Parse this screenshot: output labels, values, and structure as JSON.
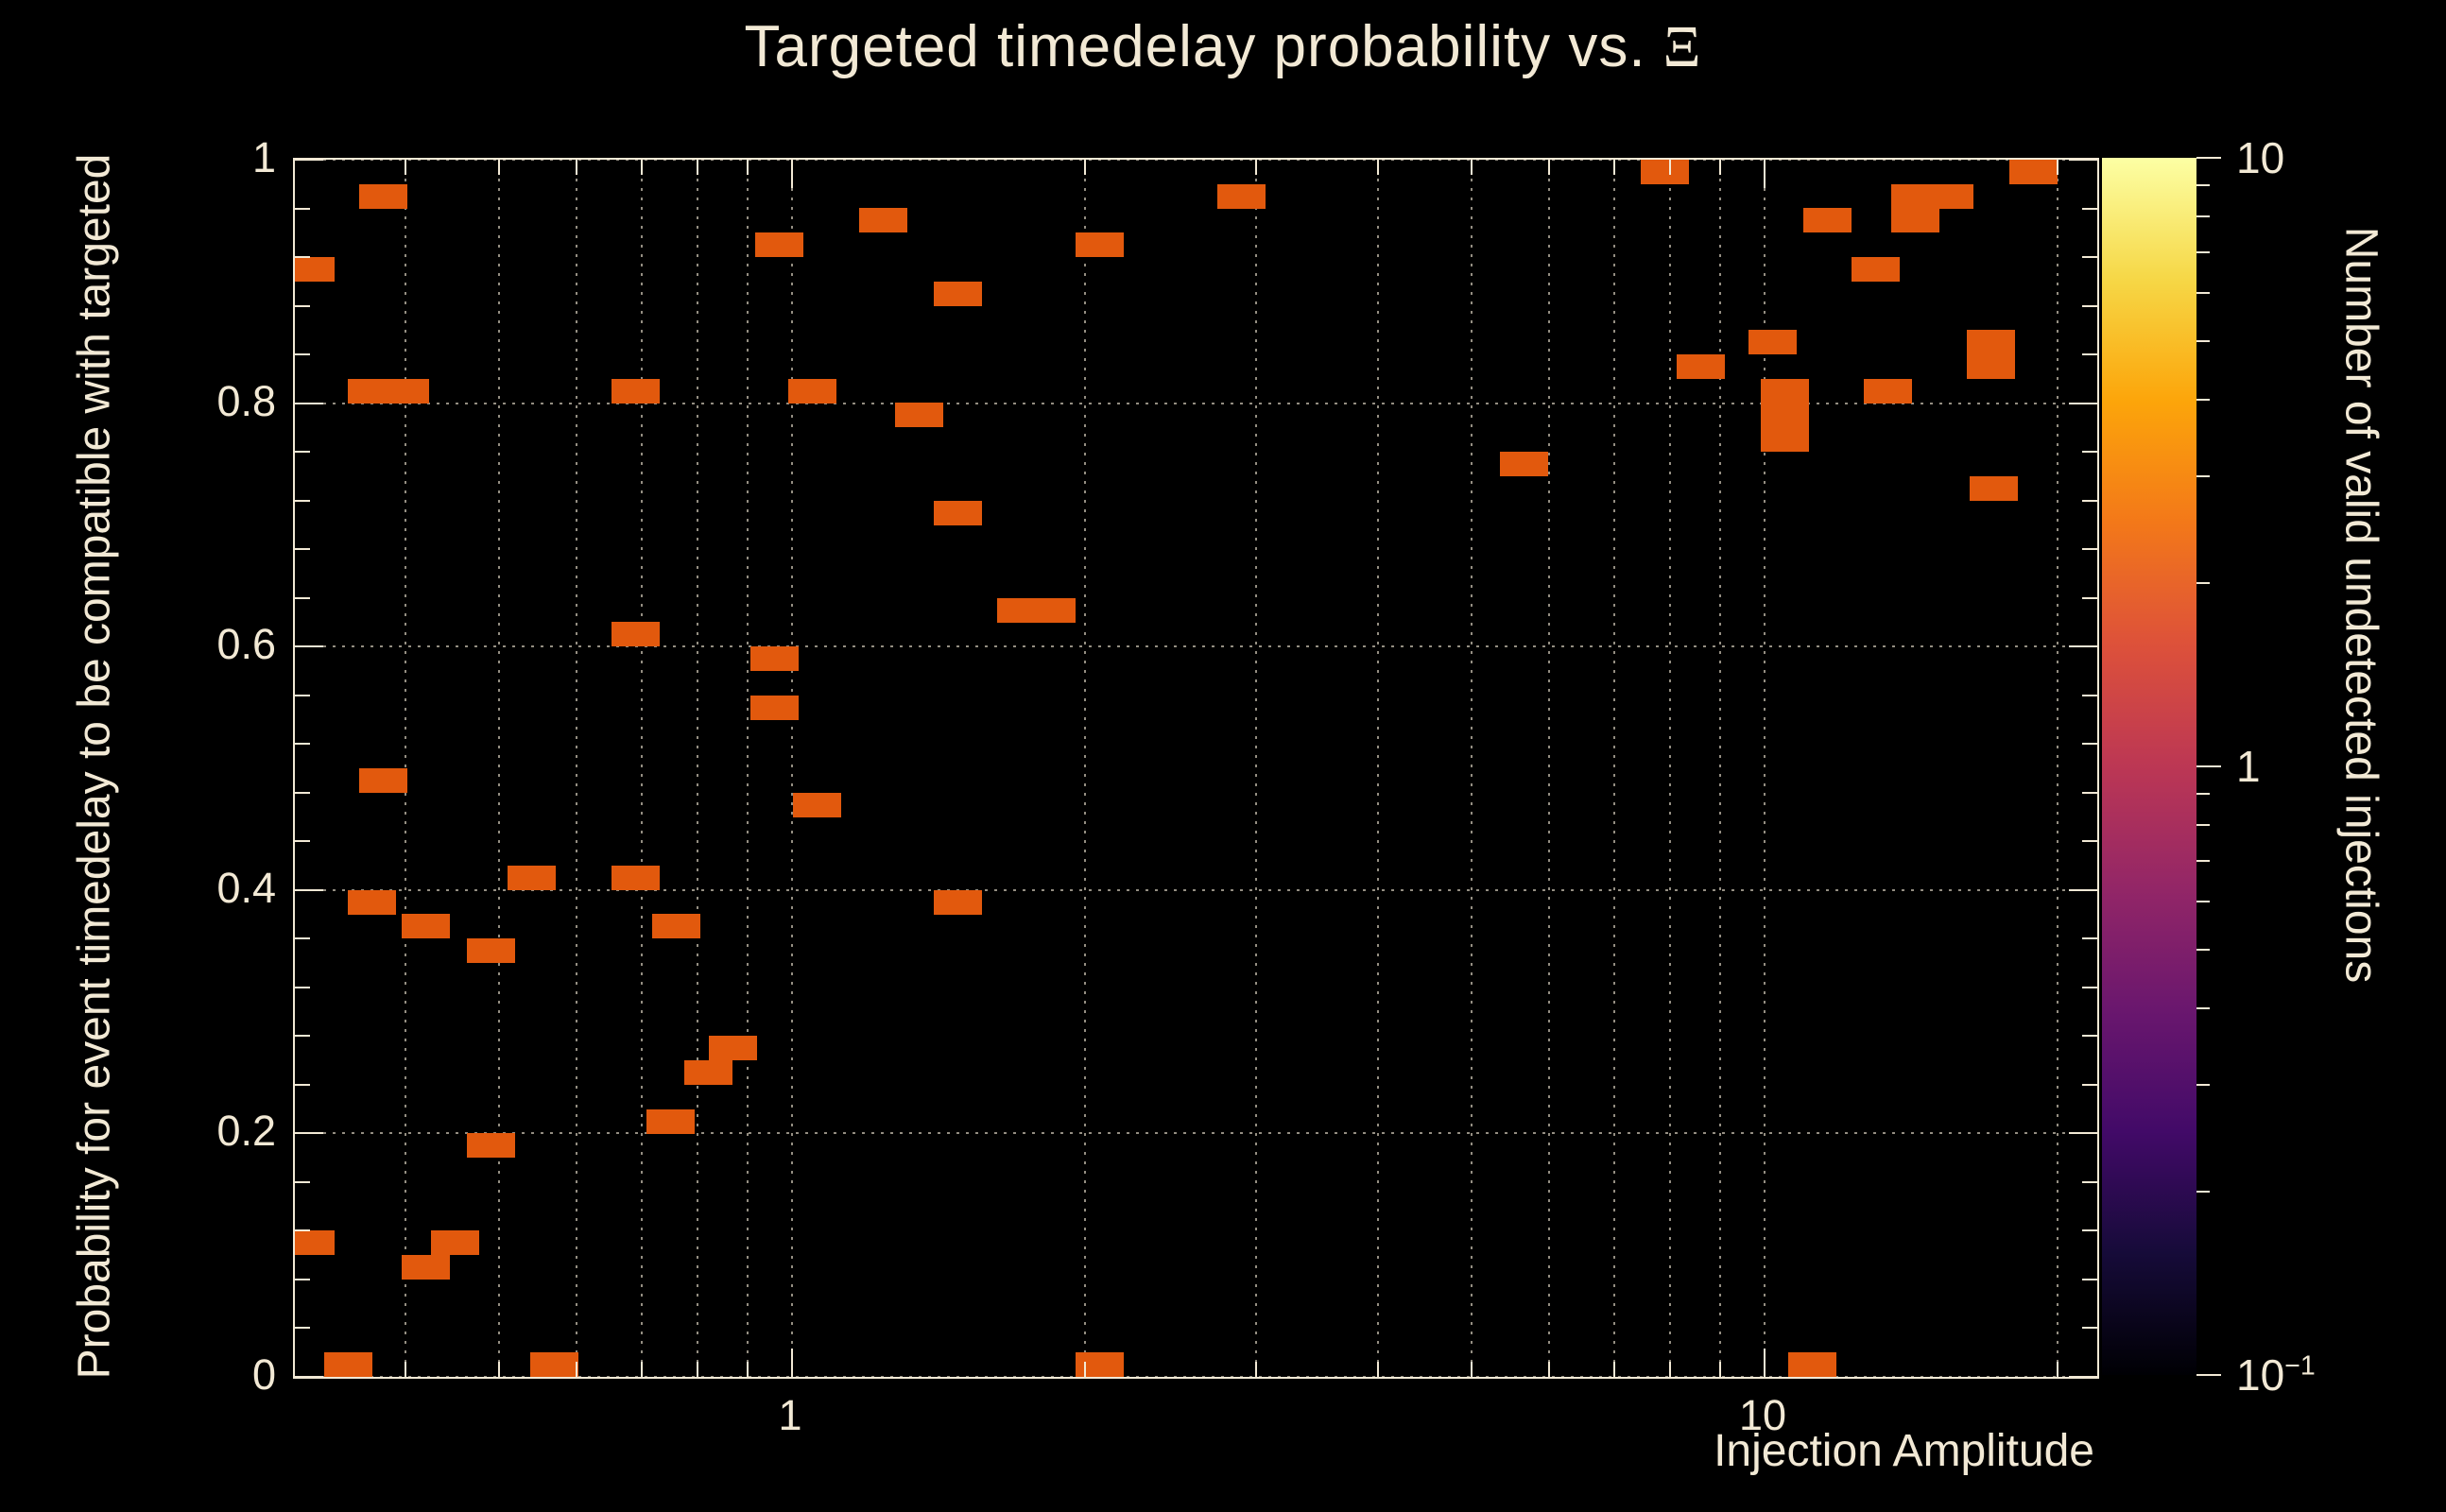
{
  "title": {
    "text": "Targeted timedelay probability vs.",
    "symbol": "Ξ"
  },
  "colors": {
    "background": "#000000",
    "text": "#f2e9d5",
    "axis": "#f2e9d5",
    "grid": "#efe6d2",
    "cell": "#e2590d"
  },
  "axes": {
    "x": {
      "label": "Injection Amplitude",
      "scale": "log",
      "min": 0.31,
      "max": 22,
      "major_ticks": [
        1,
        10
      ],
      "major_tick_labels": [
        "1",
        "10"
      ],
      "grid_values": [
        0.4,
        0.5,
        0.6,
        0.7,
        0.8,
        0.9,
        1,
        2,
        3,
        4,
        5,
        6,
        7,
        8,
        9,
        10,
        20
      ]
    },
    "y": {
      "label": "Probability for event timedelay to be compatible with targeted",
      "min": 0,
      "max": 1,
      "major_ticks": [
        0,
        0.2,
        0.4,
        0.6,
        0.8,
        1
      ],
      "major_tick_labels": [
        "0",
        "0.2",
        "0.4",
        "0.6",
        "0.8",
        "1"
      ],
      "minor_step": 0.04
    },
    "z": {
      "label": "Number of valid undetected injections",
      "scale": "log",
      "min": 0.1,
      "max": 10
    }
  },
  "colorbar": {
    "gradient": [
      "#000004",
      "#160b39",
      "#420a68",
      "#6a176e",
      "#932667",
      "#bc3754",
      "#dd513a",
      "#f37819",
      "#fca50a",
      "#f6d746",
      "#fcffa4"
    ],
    "tick_labels": [
      {
        "value": 10,
        "base": "10",
        "exp": ""
      },
      {
        "value": 1,
        "base": "1",
        "exp": ""
      },
      {
        "value": 0.1,
        "base": "10",
        "exp": "−1"
      }
    ]
  },
  "chart_data": {
    "type": "heatmap",
    "title": "Targeted timedelay probability vs. Ξ",
    "xlabel": "Injection Amplitude",
    "ylabel": "Probability for event timedelay to be compatible with targeted",
    "zlabel": "Number of valid undetected injections",
    "x_scale": "log",
    "xlim": [
      0.31,
      22
    ],
    "ylim": [
      0,
      1
    ],
    "z_scale": "log",
    "zlim": [
      0.1,
      10
    ],
    "grid": true,
    "x_bins_per_decade": 20,
    "y_bin_width": 0.02,
    "cell_value": 1,
    "cells_format": [
      "x_amplitude",
      "y_probability"
    ],
    "cells": [
      [
        0.32,
        0.91
      ],
      [
        0.38,
        0.97
      ],
      [
        0.37,
        0.81
      ],
      [
        0.4,
        0.81
      ],
      [
        0.38,
        0.49
      ],
      [
        0.37,
        0.39
      ],
      [
        0.42,
        0.37
      ],
      [
        0.49,
        0.35
      ],
      [
        0.32,
        0.11
      ],
      [
        0.45,
        0.11
      ],
      [
        0.42,
        0.09
      ],
      [
        0.35,
        0.01
      ],
      [
        0.49,
        0.19
      ],
      [
        0.54,
        0.41
      ],
      [
        0.57,
        0.01
      ],
      [
        0.69,
        0.81
      ],
      [
        0.69,
        0.61
      ],
      [
        0.69,
        0.41
      ],
      [
        0.76,
        0.37
      ],
      [
        0.75,
        0.21
      ],
      [
        0.82,
        0.25
      ],
      [
        0.87,
        0.27
      ],
      [
        0.96,
        0.59
      ],
      [
        0.96,
        0.55
      ],
      [
        0.97,
        0.93
      ],
      [
        1.05,
        0.81
      ],
      [
        1.06,
        0.47
      ],
      [
        1.24,
        0.95
      ],
      [
        1.35,
        0.79
      ],
      [
        1.48,
        0.89
      ],
      [
        1.48,
        0.71
      ],
      [
        1.48,
        0.39
      ],
      [
        1.72,
        0.63
      ],
      [
        1.85,
        0.63
      ],
      [
        2.07,
        0.93
      ],
      [
        2.07,
        0.01
      ],
      [
        2.9,
        0.97
      ],
      [
        5.66,
        0.75
      ],
      [
        7.9,
        0.99
      ],
      [
        8.6,
        0.83
      ],
      [
        10.2,
        0.85
      ],
      [
        10.5,
        0.81
      ],
      [
        10.5,
        0.79
      ],
      [
        10.5,
        0.77
      ],
      [
        11.2,
        0.01
      ],
      [
        11.6,
        0.95
      ],
      [
        13.0,
        0.91
      ],
      [
        13.4,
        0.81
      ],
      [
        14.3,
        0.97
      ],
      [
        14.3,
        0.95
      ],
      [
        15.5,
        0.97
      ],
      [
        17.1,
        0.85
      ],
      [
        17.1,
        0.83
      ],
      [
        17.2,
        0.73
      ],
      [
        18.9,
        0.99
      ]
    ]
  }
}
